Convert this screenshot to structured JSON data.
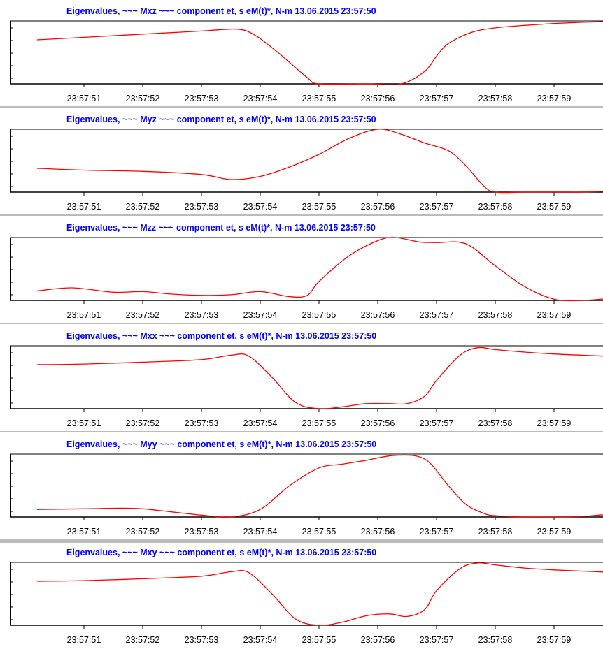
{
  "colors": {
    "title": "#0000ff",
    "line": "#ff0000",
    "axis": "#000000",
    "text": "#000000"
  },
  "chart_data": [
    {
      "type": "line",
      "title": "Eigenvalues, ~~~ Mxz ~~~ component  et, s  eM(t)*, N-m 13.06.2015  23:57:50",
      "x_tick_labels": [
        "23:57:51",
        "23:57:52",
        "23:57:53",
        "23:57:54",
        "23:57:55",
        "23:57:56",
        "23:57:57",
        "23:57:58",
        "23:57:59"
      ],
      "x": [
        50.2,
        51.0,
        52.0,
        53.0,
        53.6,
        53.9,
        54.3,
        54.8,
        55.0,
        55.8,
        56.4,
        56.8,
        57.0,
        57.2,
        57.6,
        58.0,
        58.5,
        59.0,
        59.5,
        60.0
      ],
      "values": [
        0.7,
        0.74,
        0.79,
        0.84,
        0.87,
        0.78,
        0.5,
        0.1,
        0.0,
        0.0,
        0.0,
        0.2,
        0.44,
        0.64,
        0.82,
        0.89,
        0.93,
        0.96,
        0.98,
        0.99
      ]
    },
    {
      "type": "line",
      "title": "Eigenvalues, ~~~ Myz ~~~ component  et, s  eM(t)*, N-m 13.06.2015  23:57:50",
      "x_tick_labels": [
        "23:57:51",
        "23:57:52",
        "23:57:53",
        "23:57:54",
        "23:57:55",
        "23:57:56",
        "23:57:57",
        "23:57:58",
        "23:57:59"
      ],
      "x": [
        50.2,
        51.0,
        52.0,
        53.0,
        53.5,
        54.0,
        54.5,
        55.0,
        55.5,
        56.0,
        56.4,
        56.8,
        57.2,
        57.5,
        57.8,
        58.0,
        58.5,
        59.0,
        59.5,
        60.0
      ],
      "values": [
        0.38,
        0.35,
        0.33,
        0.28,
        0.2,
        0.25,
        0.4,
        0.6,
        0.85,
        1.0,
        0.92,
        0.78,
        0.66,
        0.42,
        0.1,
        0.0,
        0.0,
        0.0,
        0.0,
        0.02
      ]
    },
    {
      "type": "line",
      "title": "Eigenvalues, ~~~ Mzz ~~~ component  et, s  eM(t)*, N-m 13.06.2015  23:57:50",
      "x_tick_labels": [
        "23:57:51",
        "23:57:52",
        "23:57:53",
        "23:57:54",
        "23:57:55",
        "23:57:56",
        "23:57:57",
        "23:57:58",
        "23:57:59"
      ],
      "x": [
        50.2,
        50.8,
        51.5,
        52.0,
        52.5,
        53.0,
        53.5,
        54.0,
        54.5,
        54.8,
        55.0,
        55.5,
        56.0,
        56.3,
        56.7,
        57.0,
        57.5,
        58.0,
        58.5,
        59.0,
        59.5,
        60.0
      ],
      "values": [
        0.15,
        0.2,
        0.13,
        0.14,
        0.1,
        0.08,
        0.09,
        0.14,
        0.06,
        0.08,
        0.3,
        0.7,
        0.95,
        1.0,
        0.93,
        0.92,
        0.9,
        0.55,
        0.22,
        0.02,
        0.0,
        0.04
      ]
    },
    {
      "type": "line",
      "title": "Eigenvalues, ~~~ Mxx ~~~ component  et, s  eM(t)*, N-m 13.06.2015  23:57:50",
      "x_tick_labels": [
        "23:57:51",
        "23:57:52",
        "23:57:53",
        "23:57:54",
        "23:57:55",
        "23:57:56",
        "23:57:57",
        "23:57:58",
        "23:57:59"
      ],
      "x": [
        50.2,
        51.0,
        52.0,
        53.0,
        53.5,
        53.8,
        54.2,
        54.6,
        55.0,
        55.4,
        55.8,
        56.2,
        56.5,
        56.8,
        57.0,
        57.4,
        57.7,
        58.0,
        58.5,
        59.0,
        59.5,
        60.0
      ],
      "values": [
        0.7,
        0.71,
        0.74,
        0.78,
        0.85,
        0.84,
        0.5,
        0.1,
        0.0,
        0.03,
        0.08,
        0.08,
        0.08,
        0.2,
        0.45,
        0.85,
        0.97,
        0.94,
        0.9,
        0.87,
        0.85,
        0.83
      ]
    },
    {
      "type": "line",
      "title": "Eigenvalues, ~~~ Myy ~~~ component  et, s  eM(t)*, N-m 13.06.2015  23:57:50",
      "x_tick_labels": [
        "23:57:51",
        "23:57:52",
        "23:57:53",
        "23:57:54",
        "23:57:55",
        "23:57:56",
        "23:57:57",
        "23:57:58",
        "23:57:59"
      ],
      "x": [
        50.2,
        51.0,
        51.6,
        52.0,
        52.5,
        53.0,
        53.5,
        54.0,
        54.5,
        55.0,
        55.4,
        55.8,
        56.3,
        56.8,
        57.2,
        57.5,
        57.8,
        58.0,
        58.5,
        59.0,
        59.5,
        60.0
      ],
      "values": [
        0.12,
        0.13,
        0.14,
        0.13,
        0.08,
        0.03,
        0.0,
        0.12,
        0.5,
        0.78,
        0.84,
        0.9,
        0.98,
        0.92,
        0.5,
        0.2,
        0.06,
        0.02,
        0.0,
        0.0,
        0.01,
        0.05
      ]
    },
    {
      "type": "line",
      "title": "Eigenvalues, ~~~ Mxy ~~~ component  et, s  eM(t)*, N-m 13.06.2015  23:57:50",
      "x_tick_labels": [
        "23:57:51",
        "23:57:52",
        "23:57:53",
        "23:57:54",
        "23:57:55",
        "23:57:56",
        "23:57:57",
        "23:57:58",
        "23:57:59"
      ],
      "x": [
        50.2,
        51.0,
        52.0,
        53.0,
        53.5,
        53.8,
        54.2,
        54.6,
        55.0,
        55.4,
        55.8,
        56.2,
        56.5,
        56.8,
        57.0,
        57.4,
        57.7,
        58.0,
        58.5,
        59.0,
        59.5,
        60.0
      ],
      "values": [
        0.7,
        0.71,
        0.74,
        0.78,
        0.85,
        0.84,
        0.5,
        0.1,
        0.0,
        0.05,
        0.15,
        0.18,
        0.14,
        0.25,
        0.55,
        0.9,
        0.99,
        0.96,
        0.91,
        0.88,
        0.86,
        0.84
      ]
    }
  ]
}
